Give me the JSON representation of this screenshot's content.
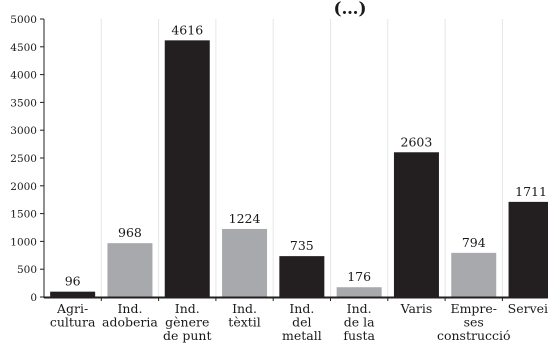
{
  "chart_data": {
    "type": "bar",
    "title": "(…)",
    "categories": [
      [
        "Agri-",
        "cultura"
      ],
      [
        "Ind.",
        "adoberia"
      ],
      [
        "Ind.",
        "gènere",
        "de punt"
      ],
      [
        "Ind.",
        "tèxtil"
      ],
      [
        "Ind.",
        "del",
        "metall"
      ],
      [
        "Ind.",
        "de la",
        "fusta"
      ],
      [
        "Varis"
      ],
      [
        "Empre-",
        "ses",
        "construcció"
      ],
      [
        "Serveis"
      ]
    ],
    "values": [
      96,
      968,
      4616,
      1224,
      735,
      176,
      2603,
      794,
      1711
    ],
    "colors": [
      "#231f20",
      "#a7a9ac",
      "#231f20",
      "#a7a9ac",
      "#231f20",
      "#a7a9ac",
      "#231f20",
      "#a7a9ac",
      "#231f20"
    ],
    "ylim": [
      0,
      5000
    ],
    "yticks": [
      0,
      500,
      1000,
      1500,
      2000,
      2500,
      3000,
      3500,
      4000,
      4500,
      5000
    ],
    "grid": true,
    "grid_axis": "x"
  }
}
